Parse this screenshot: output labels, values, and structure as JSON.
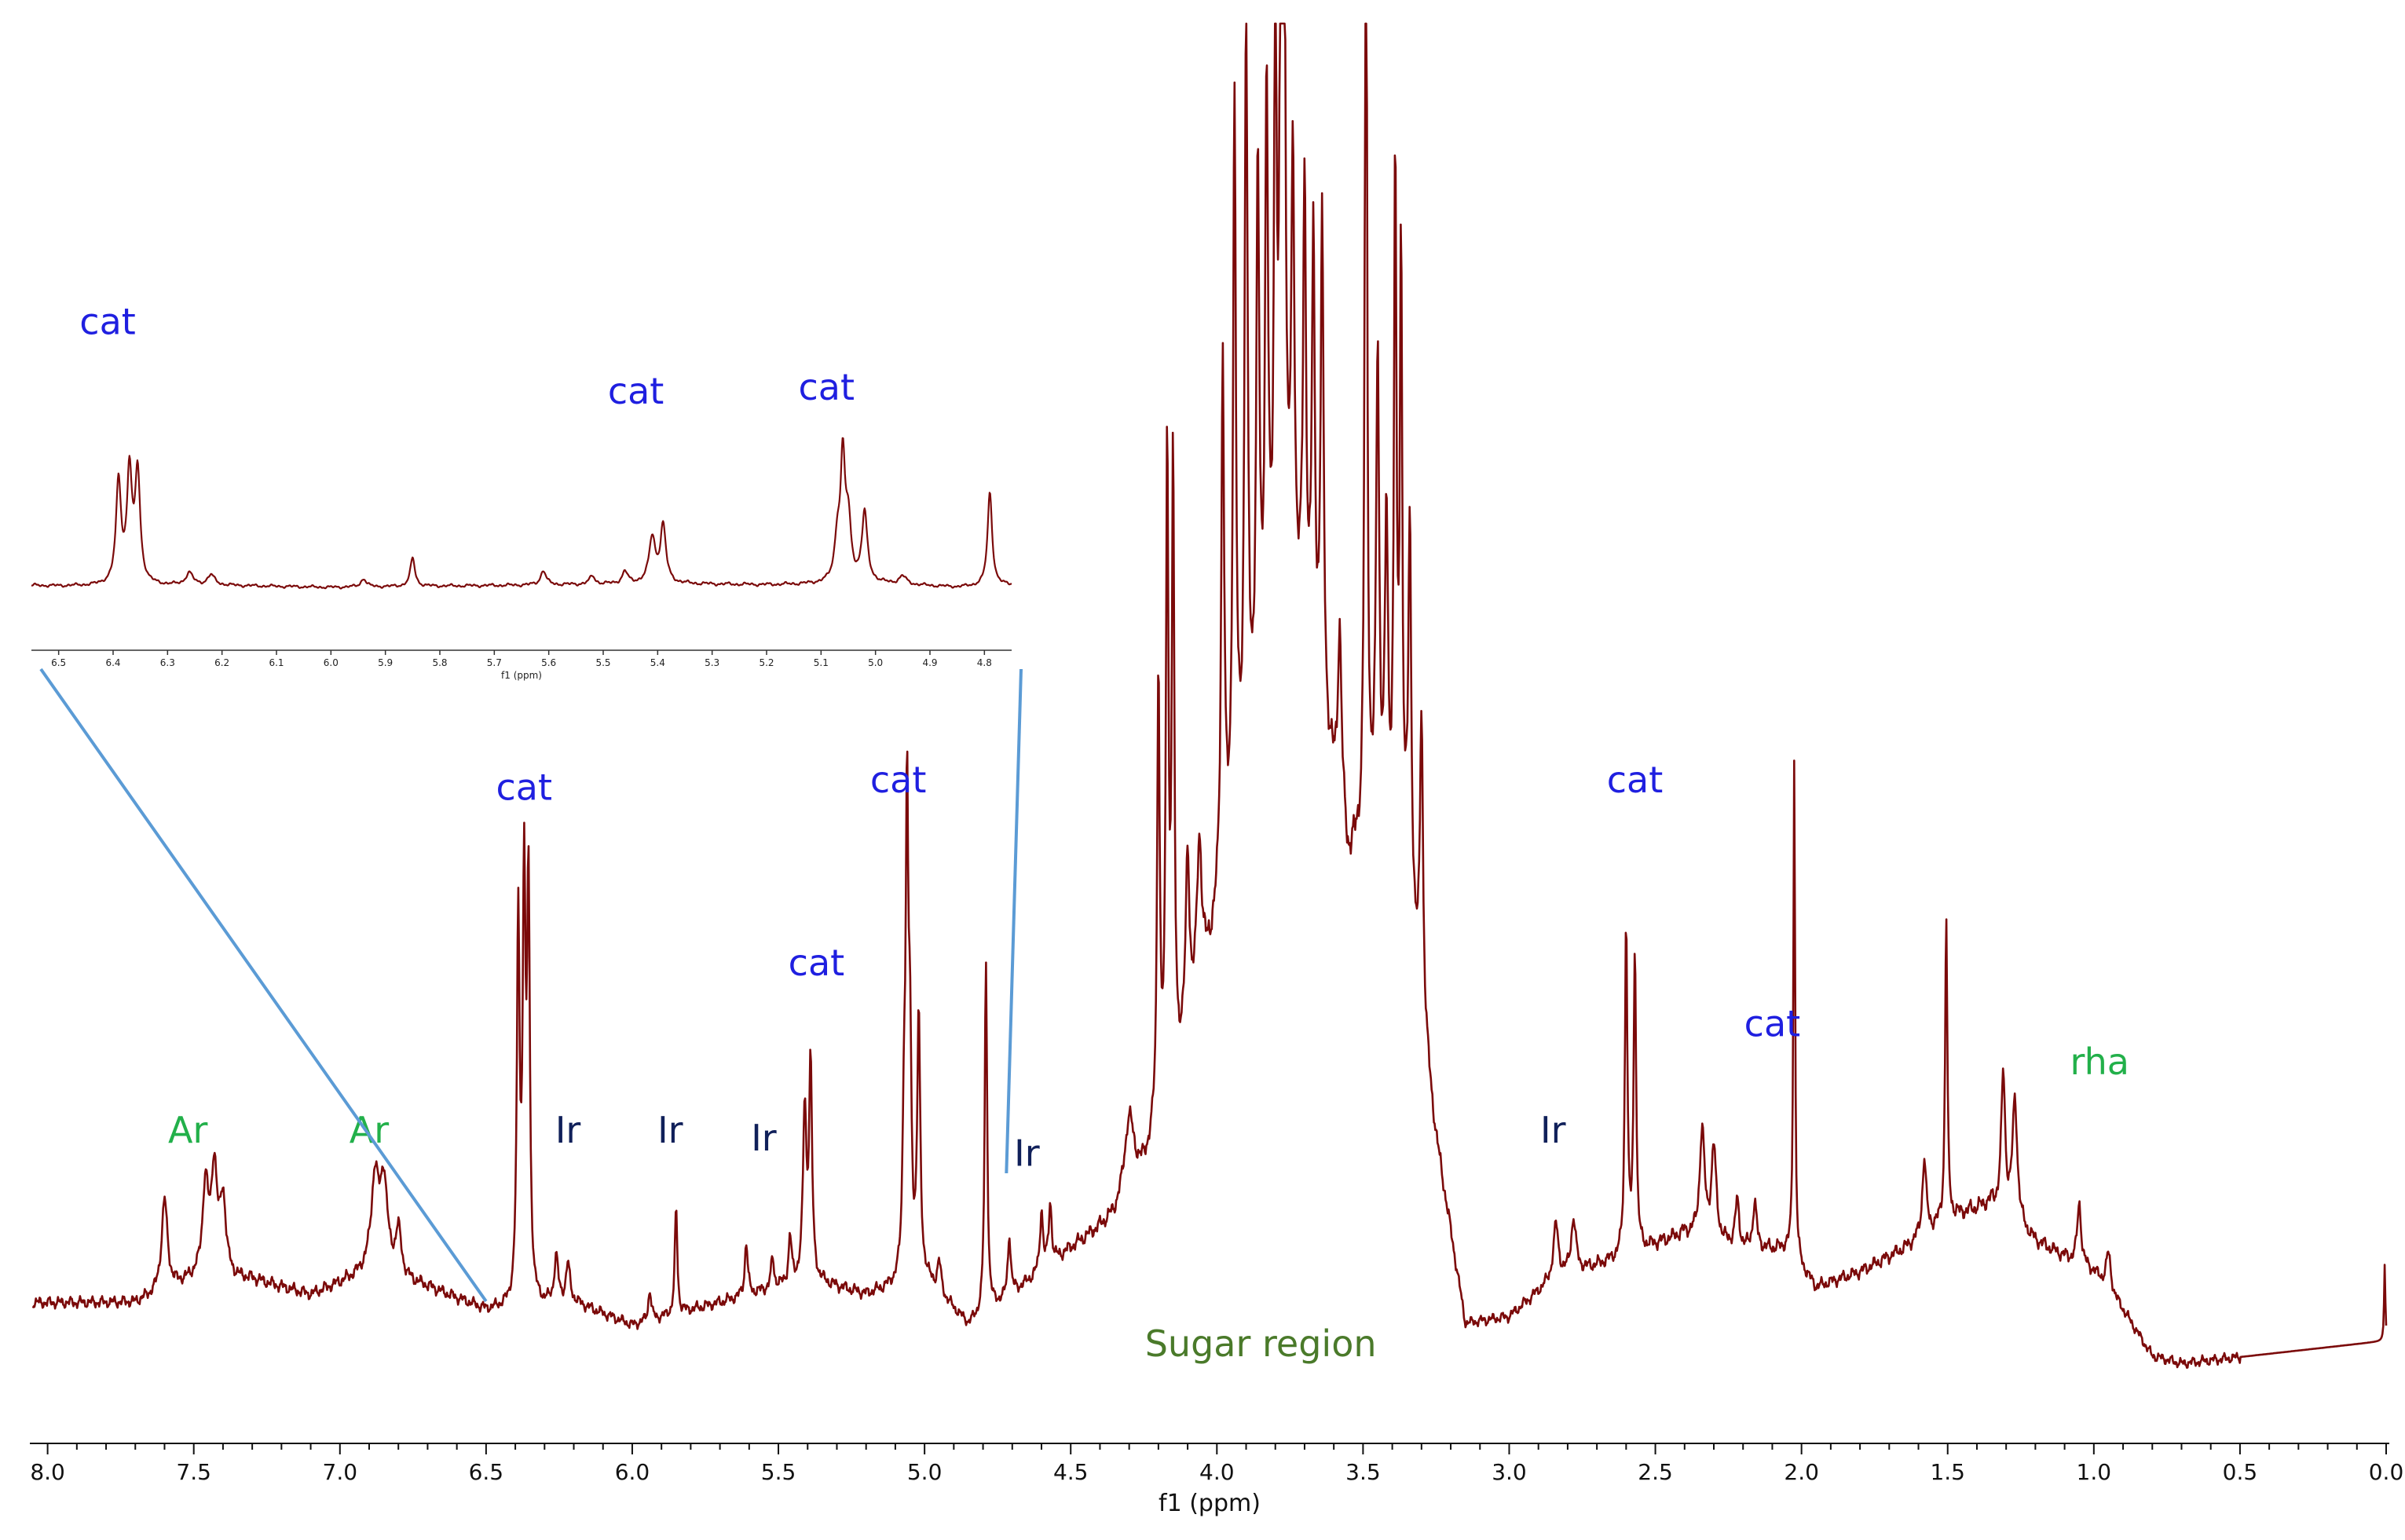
{
  "chart_data": {
    "type": "line",
    "title": "",
    "xlabel": "f1 (ppm)",
    "ylabel": "",
    "xlim": [
      8.05,
      0.0
    ],
    "x_reversed": true,
    "grid": false,
    "line_color": "#7b0a0a",
    "label_colors": {
      "cat": "#1f1fe0",
      "Ar": "#22b04a",
      "rha": "#22b04a",
      "Ir": "#10205a",
      "sugar": "#4a7a2a"
    },
    "connector_color": "#5b9bd5",
    "x_ticks": [
      {
        "value": 8.0,
        "label": "8.0"
      },
      {
        "value": 7.5,
        "label": "7.5"
      },
      {
        "value": 7.0,
        "label": "7.0"
      },
      {
        "value": 6.5,
        "label": "6.5"
      },
      {
        "value": 6.0,
        "label": "6.0"
      },
      {
        "value": 5.5,
        "label": "5.5"
      },
      {
        "value": 5.0,
        "label": "5.0"
      },
      {
        "value": 4.5,
        "label": "4.5"
      },
      {
        "value": 4.0,
        "label": "4.0"
      },
      {
        "value": 3.5,
        "label": "3.5"
      },
      {
        "value": 3.0,
        "label": "3.0"
      },
      {
        "value": 2.5,
        "label": "2.5"
      },
      {
        "value": 2.0,
        "label": "2.0"
      },
      {
        "value": 1.5,
        "label": "1.5"
      },
      {
        "value": 1.0,
        "label": "1.0"
      },
      {
        "value": 0.5,
        "label": "0.5"
      },
      {
        "value": 0.0,
        "label": "0.0"
      }
    ],
    "baseline": [
      [
        8.05,
        0.015
      ],
      [
        7.7,
        0.015
      ],
      [
        7.5,
        0.03
      ],
      [
        7.3,
        0.03
      ],
      [
        7.1,
        0.02
      ],
      [
        6.9,
        0.035
      ],
      [
        6.7,
        0.025
      ],
      [
        6.5,
        0.01
      ],
      [
        6.2,
        0.015
      ],
      [
        6.0,
        0.0
      ],
      [
        5.8,
        0.01
      ],
      [
        5.6,
        0.02
      ],
      [
        5.4,
        0.03
      ],
      [
        5.2,
        0.02
      ],
      [
        5.0,
        0.03
      ],
      [
        4.85,
        0.0
      ],
      [
        4.7,
        0.02
      ],
      [
        4.5,
        0.05
      ],
      [
        4.35,
        0.07
      ],
      [
        4.25,
        0.1
      ],
      [
        4.1,
        0.18
      ],
      [
        3.95,
        0.3
      ],
      [
        3.85,
        0.4
      ],
      [
        3.75,
        0.48
      ],
      [
        3.65,
        0.4
      ],
      [
        3.55,
        0.3
      ],
      [
        3.45,
        0.33
      ],
      [
        3.35,
        0.28
      ],
      [
        3.25,
        0.12
      ],
      [
        3.15,
        0.0
      ],
      [
        3.0,
        0.005
      ],
      [
        2.85,
        0.03
      ],
      [
        2.6,
        0.045
      ],
      [
        2.4,
        0.06
      ],
      [
        2.2,
        0.05
      ],
      [
        2.05,
        0.05
      ],
      [
        1.95,
        0.025
      ],
      [
        1.8,
        0.035
      ],
      [
        1.65,
        0.05
      ],
      [
        1.5,
        0.07
      ],
      [
        1.35,
        0.08
      ],
      [
        1.2,
        0.055
      ],
      [
        1.0,
        0.035
      ],
      [
        0.9,
        0.01
      ],
      [
        0.8,
        -0.02
      ],
      [
        0.7,
        -0.025
      ],
      [
        0.0,
        -0.01
      ]
    ],
    "peaks": [
      [
        7.6,
        0.06,
        0.012
      ],
      [
        7.46,
        0.06,
        0.012
      ],
      [
        7.43,
        0.07,
        0.012
      ],
      [
        7.4,
        0.05,
        0.012
      ],
      [
        6.88,
        0.06,
        0.015
      ],
      [
        6.85,
        0.06,
        0.015
      ],
      [
        6.8,
        0.03,
        0.012
      ],
      [
        6.39,
        0.25,
        0.0055
      ],
      [
        6.37,
        0.27,
        0.0055
      ],
      [
        6.355,
        0.27,
        0.0055
      ],
      [
        6.26,
        0.03,
        0.008
      ],
      [
        6.22,
        0.025,
        0.008
      ],
      [
        5.94,
        0.02,
        0.006
      ],
      [
        5.85,
        0.07,
        0.005
      ],
      [
        5.61,
        0.035,
        0.006
      ],
      [
        5.52,
        0.02,
        0.006
      ],
      [
        5.46,
        0.03,
        0.006
      ],
      [
        5.41,
        0.11,
        0.007
      ],
      [
        5.39,
        0.14,
        0.006
      ],
      [
        5.07,
        0.1,
        0.006
      ],
      [
        5.06,
        0.29,
        0.005
      ],
      [
        5.05,
        0.14,
        0.006
      ],
      [
        5.02,
        0.17,
        0.006
      ],
      [
        4.95,
        0.02,
        0.008
      ],
      [
        4.79,
        0.23,
        0.005
      ],
      [
        4.71,
        0.04,
        0.006
      ],
      [
        4.6,
        0.04,
        0.006
      ],
      [
        4.57,
        0.04,
        0.006
      ],
      [
        4.3,
        0.05,
        0.02
      ],
      [
        4.2,
        0.3,
        0.005
      ],
      [
        4.17,
        0.43,
        0.005
      ],
      [
        4.15,
        0.4,
        0.005
      ],
      [
        4.1,
        0.12,
        0.008
      ],
      [
        4.06,
        0.1,
        0.01
      ],
      [
        3.98,
        0.35,
        0.006
      ],
      [
        3.94,
        0.48,
        0.006
      ],
      [
        3.9,
        0.5,
        0.006
      ],
      [
        3.86,
        0.35,
        0.006
      ],
      [
        3.83,
        0.38,
        0.006
      ],
      [
        3.8,
        0.45,
        0.005
      ],
      [
        3.78,
        0.56,
        0.005
      ],
      [
        3.77,
        0.48,
        0.005
      ],
      [
        3.74,
        0.28,
        0.006
      ],
      [
        3.7,
        0.3,
        0.006
      ],
      [
        3.67,
        0.28,
        0.006
      ],
      [
        3.64,
        0.32,
        0.006
      ],
      [
        3.58,
        0.12,
        0.008
      ],
      [
        3.49,
        0.72,
        0.0045
      ],
      [
        3.45,
        0.3,
        0.006
      ],
      [
        3.42,
        0.2,
        0.006
      ],
      [
        3.39,
        0.45,
        0.005
      ],
      [
        3.37,
        0.4,
        0.005
      ],
      [
        3.34,
        0.25,
        0.006
      ],
      [
        3.3,
        0.2,
        0.006
      ],
      [
        2.84,
        0.035,
        0.01
      ],
      [
        2.78,
        0.035,
        0.01
      ],
      [
        2.6,
        0.22,
        0.005
      ],
      [
        2.57,
        0.2,
        0.005
      ],
      [
        2.34,
        0.07,
        0.01
      ],
      [
        2.3,
        0.06,
        0.01
      ],
      [
        2.22,
        0.03,
        0.008
      ],
      [
        2.16,
        0.03,
        0.008
      ],
      [
        2.025,
        0.33,
        0.0035
      ],
      [
        1.58,
        0.05,
        0.008
      ],
      [
        1.505,
        0.2,
        0.0045
      ],
      [
        1.31,
        0.09,
        0.008
      ],
      [
        1.27,
        0.08,
        0.01
      ],
      [
        1.05,
        0.04,
        0.008
      ],
      [
        0.95,
        0.025,
        0.01
      ],
      [
        0.005,
        0.05,
        0.0025
      ]
    ],
    "y_scale_min": -0.03,
    "y_scale_max": 0.87
  },
  "inset": {
    "xlim": [
      6.55,
      4.75
    ],
    "xlabel": "f1 (ppm)",
    "line_color": "#7b0a0a",
    "x_ticks": [
      "6.5",
      "6.4",
      "6.3",
      "6.2",
      "6.1",
      "6.0",
      "5.9",
      "5.8",
      "5.7",
      "5.6",
      "5.5",
      "5.4",
      "5.3",
      "5.2",
      "5.1",
      "5.0",
      "4.9",
      "4.8"
    ],
    "labels": [
      {
        "text": "cat",
        "group": "cat",
        "ppm": 6.41,
        "height": 0.62
      },
      {
        "text": "cat",
        "group": "cat",
        "ppm": 5.44,
        "height": 0.45
      },
      {
        "text": "cat",
        "group": "cat",
        "ppm": 5.09,
        "height": 0.46
      }
    ]
  },
  "annotations": [
    {
      "text": "cat",
      "group": "cat",
      "ppm": 6.37,
      "height": 0.345
    },
    {
      "text": "cat",
      "group": "cat",
      "ppm": 5.09,
      "height": 0.35
    },
    {
      "text": "cat",
      "group": "cat",
      "ppm": 5.37,
      "height": 0.23
    },
    {
      "text": "cat",
      "group": "cat",
      "ppm": 2.57,
      "height": 0.35
    },
    {
      "text": "cat",
      "group": "cat",
      "ppm": 2.1,
      "height": 0.19
    },
    {
      "text": "Ar",
      "group": "Ar",
      "ppm": 7.52,
      "height": 0.12
    },
    {
      "text": "Ar",
      "group": "Ar",
      "ppm": 6.9,
      "height": 0.12
    },
    {
      "text": "Ir",
      "group": "Ir",
      "ppm": 6.22,
      "height": 0.12
    },
    {
      "text": "Ir",
      "group": "Ir",
      "ppm": 5.87,
      "height": 0.12
    },
    {
      "text": "Ir",
      "group": "Ir",
      "ppm": 5.55,
      "height": 0.115
    },
    {
      "text": "Ir",
      "group": "Ir",
      "ppm": 4.65,
      "height": 0.105
    },
    {
      "text": "Ir",
      "group": "Ir",
      "ppm": 2.85,
      "height": 0.12
    },
    {
      "text": "rha",
      "group": "rha",
      "ppm": 0.98,
      "height": 0.165
    },
    {
      "text": "Sugar region",
      "group": "sugar",
      "ppm": 3.85,
      "height": -0.02
    }
  ]
}
